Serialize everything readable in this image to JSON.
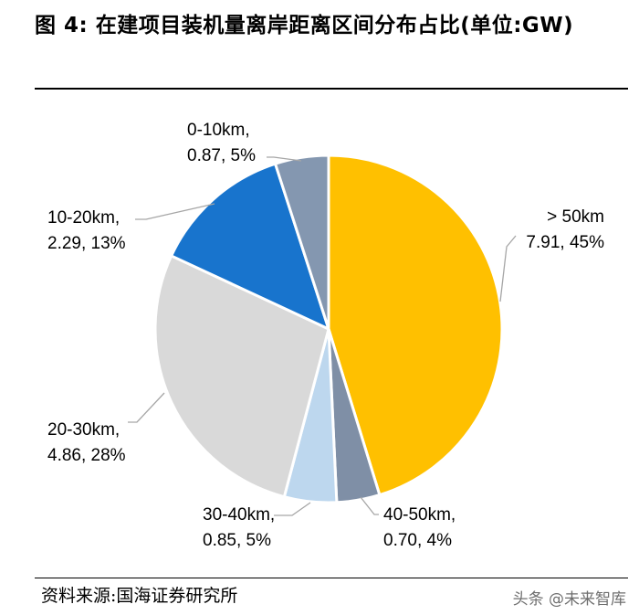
{
  "title": "图 4: 在建项目装机量离岸距离区间分布占比(单位:GW)",
  "source": "资料来源:国海证券研究所",
  "watermark": "头条 @未来智库",
  "chart_data": {
    "type": "pie",
    "unit": "GW",
    "slices": [
      {
        "category": "> 50km",
        "value": 7.91,
        "percent": "45%",
        "color": "#FFC000",
        "label_line1": "> 50km",
        "label_line2": "7.91, 45%"
      },
      {
        "category": "40-50km",
        "value": 0.7,
        "percent": "4%",
        "color": "#7F8FA6",
        "label_line1": "40-50km,",
        "label_line2": "0.70, 4%"
      },
      {
        "category": "30-40km",
        "value": 0.85,
        "percent": "5%",
        "color": "#BDD7EE",
        "label_line1": "30-40km,",
        "label_line2": "0.85, 5%"
      },
      {
        "category": "20-30km",
        "value": 4.86,
        "percent": "28%",
        "color": "#D9D9D9",
        "label_line1": "20-30km,",
        "label_line2": "4.86, 28%"
      },
      {
        "category": "10-20km",
        "value": 2.29,
        "percent": "13%",
        "color": "#1874CD",
        "label_line1": "10-20km,",
        "label_line2": "2.29, 13%"
      },
      {
        "category": "0-10km",
        "value": 0.87,
        "percent": "5%",
        "color": "#8497B0",
        "label_line1": "0-10km,",
        "label_line2": "0.87, 5%"
      }
    ]
  }
}
